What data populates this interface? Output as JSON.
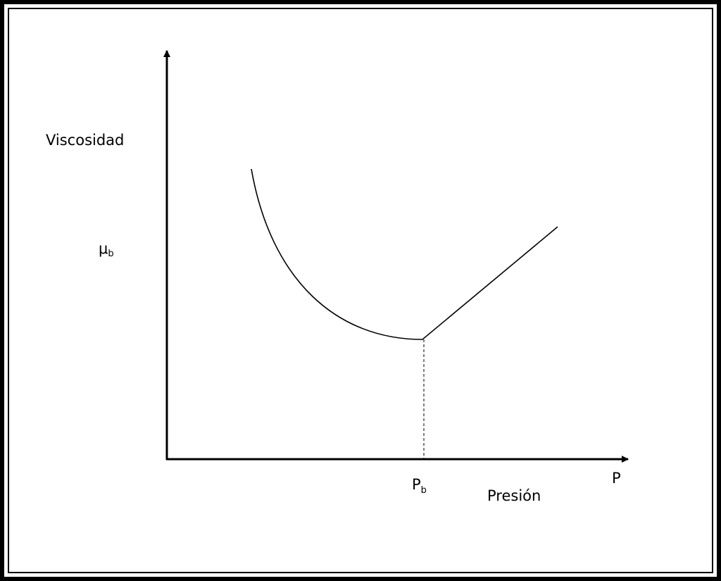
{
  "y_axis_label": "Viscosidad",
  "mu_b": {
    "symbol": "μ",
    "subscript": "b"
  },
  "p_b": {
    "symbol": "P",
    "subscript": "b"
  },
  "x_axis_label": "Presión",
  "x_axis_symbol": "P"
}
